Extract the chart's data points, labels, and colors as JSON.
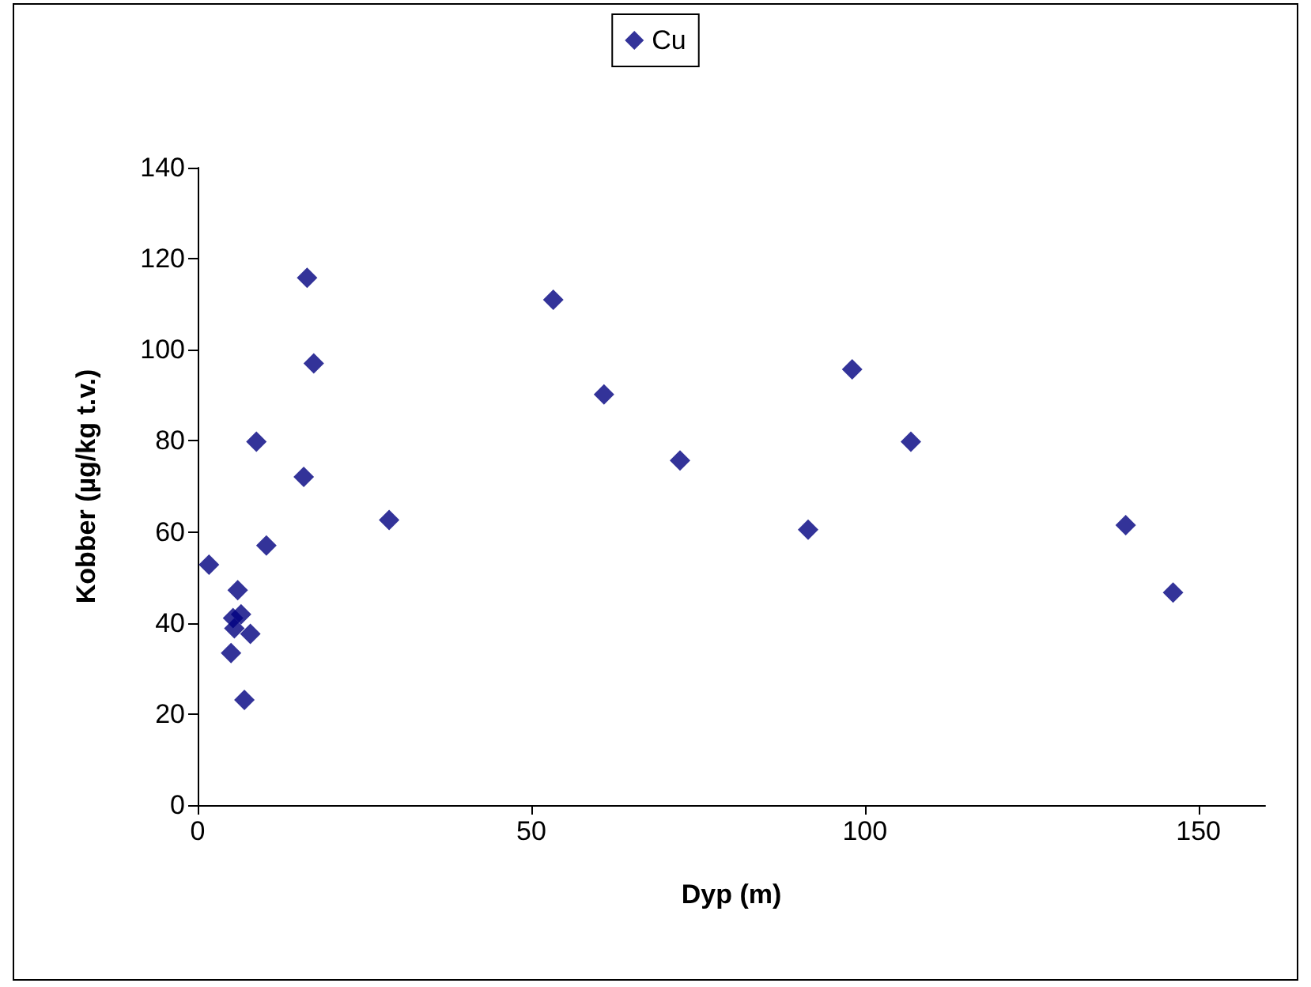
{
  "chart_data": {
    "type": "scatter",
    "xlabel": "Dyp (m)",
    "ylabel": "Kobber (µg/kg t.v.)",
    "xlim": [
      0,
      160
    ],
    "xticks": [
      0,
      50,
      100,
      150
    ],
    "ylim": [
      0,
      140
    ],
    "yticks": [
      0,
      20,
      40,
      60,
      80,
      100,
      120,
      140
    ],
    "grid": false,
    "legend": "top",
    "marker": "diamond",
    "series": [
      {
        "name": "Cu",
        "color": "#000080",
        "x": [
          16.4,
          17.4,
          8.8,
          15.9,
          28.7,
          10.3,
          1.7,
          6.0,
          6.5,
          5.3,
          5.5,
          7.9,
          5.0,
          7.0,
          53.3,
          60.9,
          72.3,
          91.5,
          98.1,
          106.9,
          139.1,
          146.2
        ],
        "values": [
          115.8,
          97.0,
          79.8,
          72.1,
          62.6,
          57.0,
          52.8,
          47.2,
          41.9,
          41.1,
          38.8,
          37.6,
          33.4,
          23.1,
          111,
          90.2,
          75.7,
          60.5,
          95.7,
          79.8,
          61.5,
          46.7
        ]
      }
    ]
  }
}
